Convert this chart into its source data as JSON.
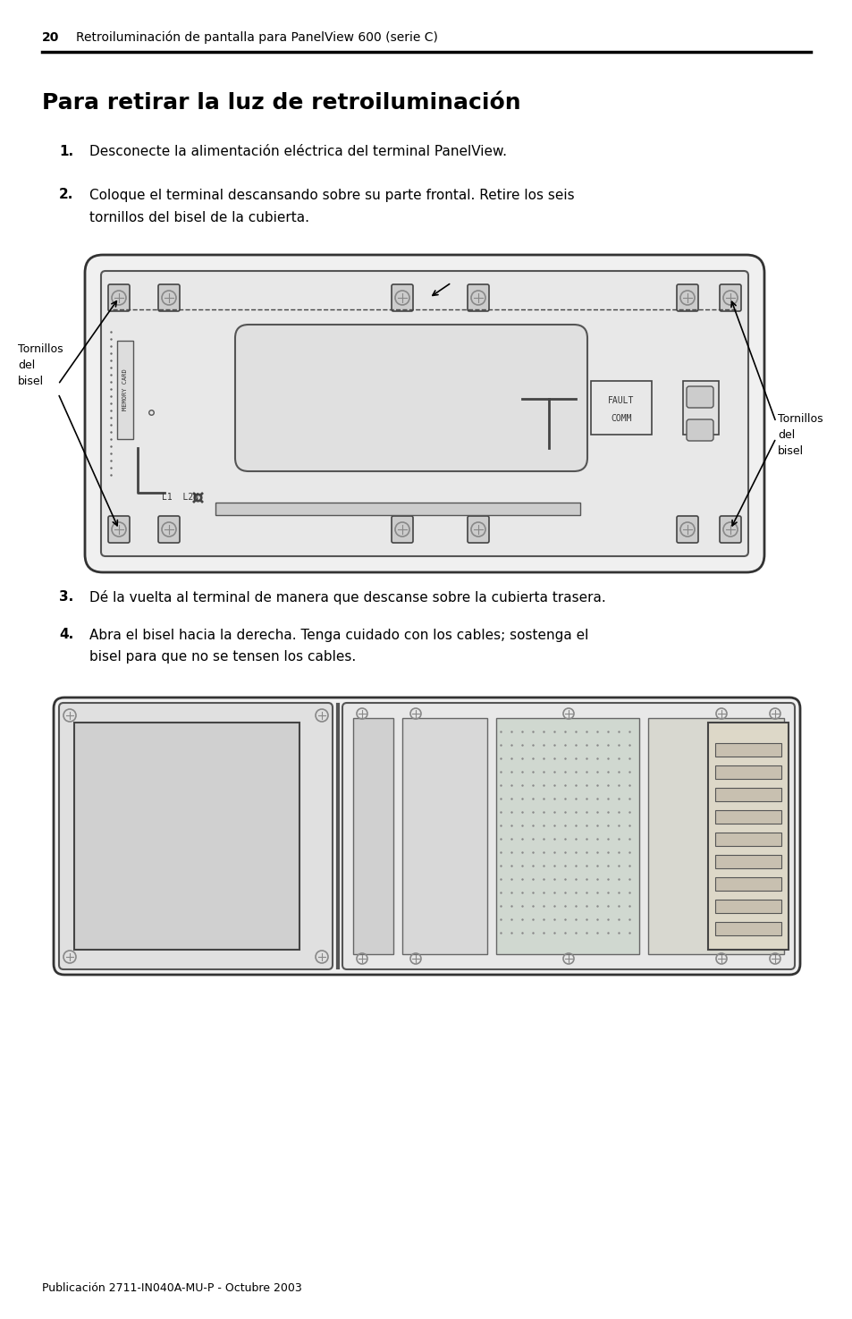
{
  "page_number": "20",
  "header_text": "Retroiluminación de pantalla para PanelView 600 (serie C)",
  "title": "Para retirar la luz de retroiluminación",
  "step1_num": "1.",
  "step1_text": "Desconecte la alimentación eléctrica del terminal PanelView.",
  "step2_num": "2.",
  "step2_line1": "Coloque el terminal descansando sobre su parte frontal. Retire los seis",
  "step2_line2": "tornillos del bisel de la cubierta.",
  "step3_num": "3.",
  "step3_text": "Dé la vuelta al terminal de manera que descanse sobre la cubierta trasera.",
  "step4_num": "4.",
  "step4_line1": "Abra el bisel hacia la derecha. Tenga cuidado con los cables; sostenga el",
  "step4_line2": "bisel para que no se tensen los cables.",
  "footer_text": "Publicación 2711-IN040A-MU-P - Octubre 2003",
  "bg_color": "#ffffff",
  "text_color": "#000000",
  "header_line_color": "#000000"
}
